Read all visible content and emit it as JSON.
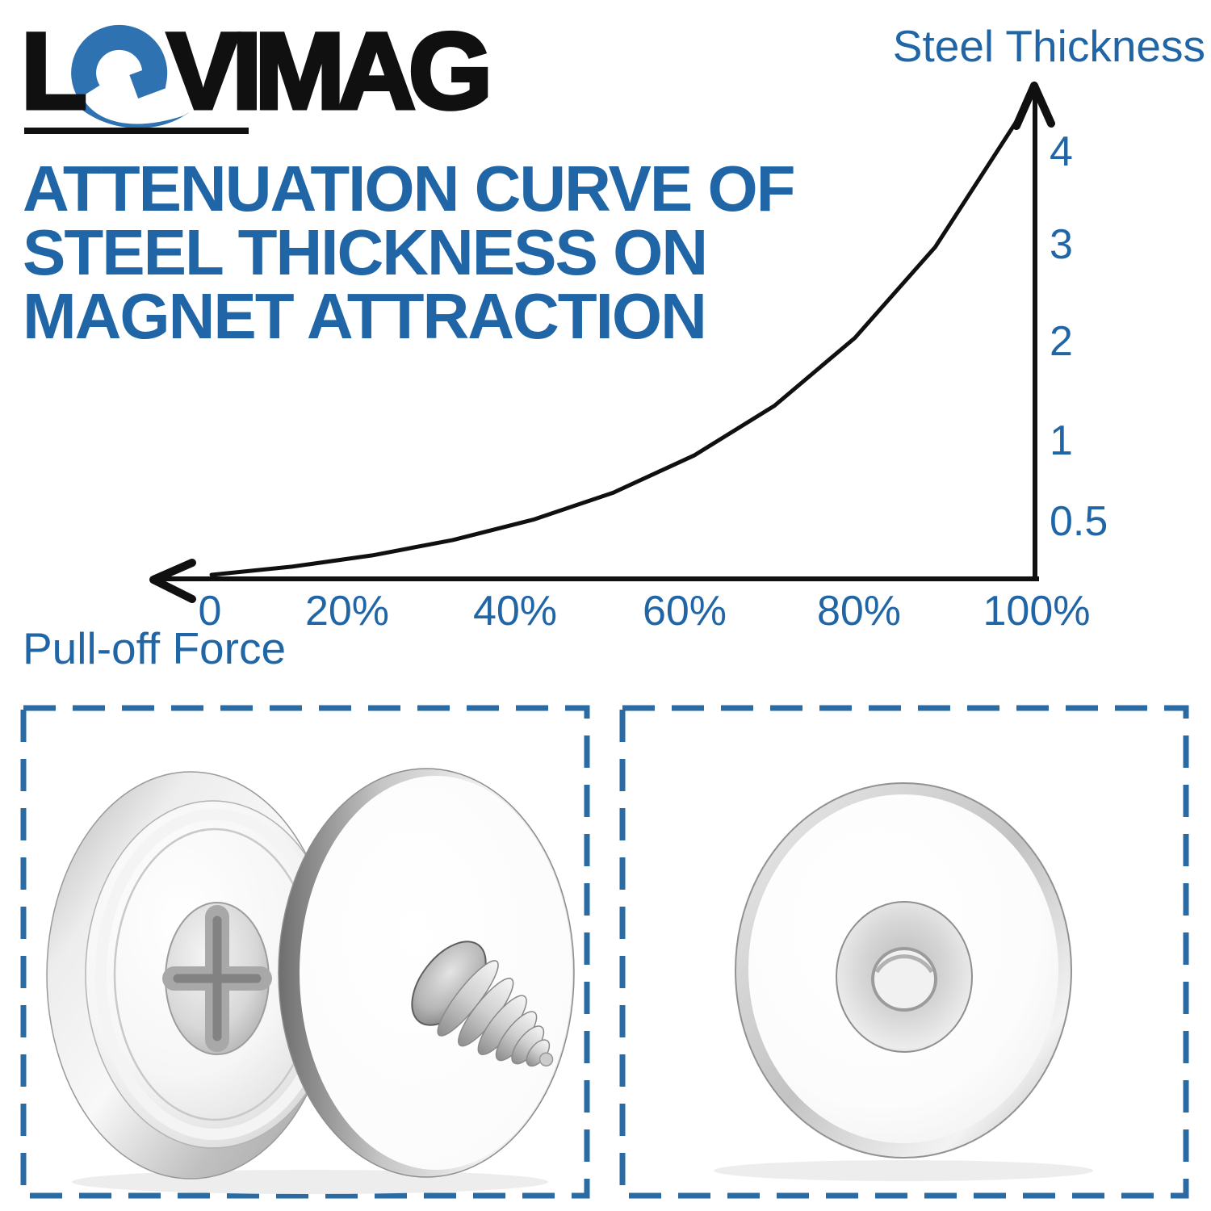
{
  "colors": {
    "accent_blue": "#2066A6",
    "logo_blue": "#2F72B2",
    "ink": "#101010",
    "panel_border_blue": "#2A6BA4"
  },
  "logo": {
    "l": "L",
    "o_symbol": "magnet-swirl-o",
    "rest": "VIMAG"
  },
  "title": {
    "lines": [
      "ATTENUATION CURVE OF",
      "STEEL THICKNESS ON",
      "MAGNET ATTRACTION"
    ]
  },
  "chart_data": {
    "type": "line",
    "title": "Attenuation curve of steel thickness on magnet attraction",
    "xlabel": "Pull-off Force",
    "ylabel": "Steel Thickness",
    "x_tick_labels": [
      "0",
      "20%",
      "40%",
      "60%",
      "80%",
      "100%"
    ],
    "y_tick_labels": [
      "4",
      "3",
      "2",
      "1",
      "0.5"
    ],
    "y_axis_values_top_to_bottom": [
      4,
      3,
      2,
      1,
      0.5
    ],
    "x_axis_range_pct": [
      0,
      100
    ],
    "axes_style": "x axis arrow points left, y axis arrow points up, no grid",
    "curve_shape": "exponential increase from origin toward (100%, 4)",
    "curve_points_norm": [
      [
        0.0,
        0.0
      ],
      [
        0.1,
        0.018
      ],
      [
        0.2,
        0.043
      ],
      [
        0.3,
        0.077
      ],
      [
        0.4,
        0.122
      ],
      [
        0.5,
        0.182
      ],
      [
        0.6,
        0.264
      ],
      [
        0.7,
        0.374
      ],
      [
        0.8,
        0.524
      ],
      [
        0.9,
        0.725
      ],
      [
        1.0,
        1.0
      ]
    ],
    "readings_thickness_vs_force_pct": [
      {
        "steel_thickness": 0.5,
        "pull_off_force_pct": 41
      },
      {
        "steel_thickness": 1,
        "pull_off_force_pct": 57
      },
      {
        "steel_thickness": 2,
        "pull_off_force_pct": 73
      },
      {
        "steel_thickness": 3,
        "pull_off_force_pct": 85
      },
      {
        "steel_thickness": 4,
        "pull_off_force_pct": 96
      }
    ]
  },
  "panels": {
    "left": {
      "alt": "two nickel pot magnets, one with countersunk phillips screw installed, one with screw protruding"
    },
    "right": {
      "alt": "countersunk disc magnet viewed face-on"
    }
  }
}
